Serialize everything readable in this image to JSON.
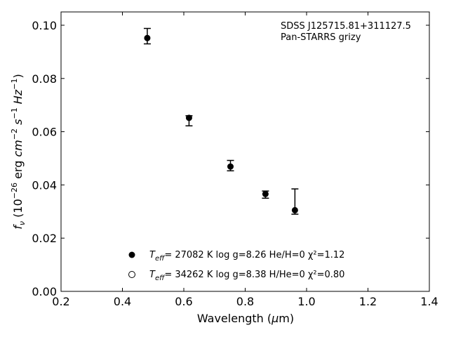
{
  "chart_data": {
    "type": "scatter",
    "title": "",
    "xlabel": "Wavelength (μm)",
    "ylabel": "f_ν (10^-26 erg cm^-2 s^-1 Hz^-1)",
    "xlim": [
      0.2,
      1.4
    ],
    "ylim": [
      0.0,
      0.105
    ],
    "x_ticks": [
      "0.2",
      "0.4",
      "0.6",
      "0.8",
      "1.0",
      "1.2",
      "1.4"
    ],
    "y_ticks": [
      "0.00",
      "0.02",
      "0.04",
      "0.06",
      "0.08",
      "0.10"
    ],
    "grid": false,
    "annotation": [
      "SDSS J125715.81+311127.5",
      "Pan-STARRS grizy"
    ],
    "observed": [
      {
        "x": 0.481,
        "y": 0.0958,
        "err_low": 0.0028,
        "err_high": 0.003
      },
      {
        "x": 0.617,
        "y": 0.0642,
        "err_low": 0.002,
        "err_high": 0.0018
      },
      {
        "x": 0.752,
        "y": 0.047,
        "err_low": 0.0017,
        "err_high": 0.0022
      },
      {
        "x": 0.866,
        "y": 0.0362,
        "err_low": 0.0012,
        "err_high": 0.0015
      },
      {
        "x": 0.962,
        "y": 0.03,
        "err_low": 0.001,
        "err_high": 0.0085
      }
    ],
    "model_filled": [
      {
        "x": 0.481,
        "y": 0.0952
      },
      {
        "x": 0.617,
        "y": 0.0652
      },
      {
        "x": 0.752,
        "y": 0.0469
      },
      {
        "x": 0.866,
        "y": 0.0366
      },
      {
        "x": 0.962,
        "y": 0.0305
      }
    ],
    "legend": [
      {
        "marker": "filled",
        "label": "= 27082 K  log g=8.26  He/H=0  χ²=1.12"
      },
      {
        "marker": "open",
        "label": "= 34262 K  log g=8.38  H/He=0  χ²=0.80"
      }
    ],
    "legend_prefix": "T_eff"
  }
}
